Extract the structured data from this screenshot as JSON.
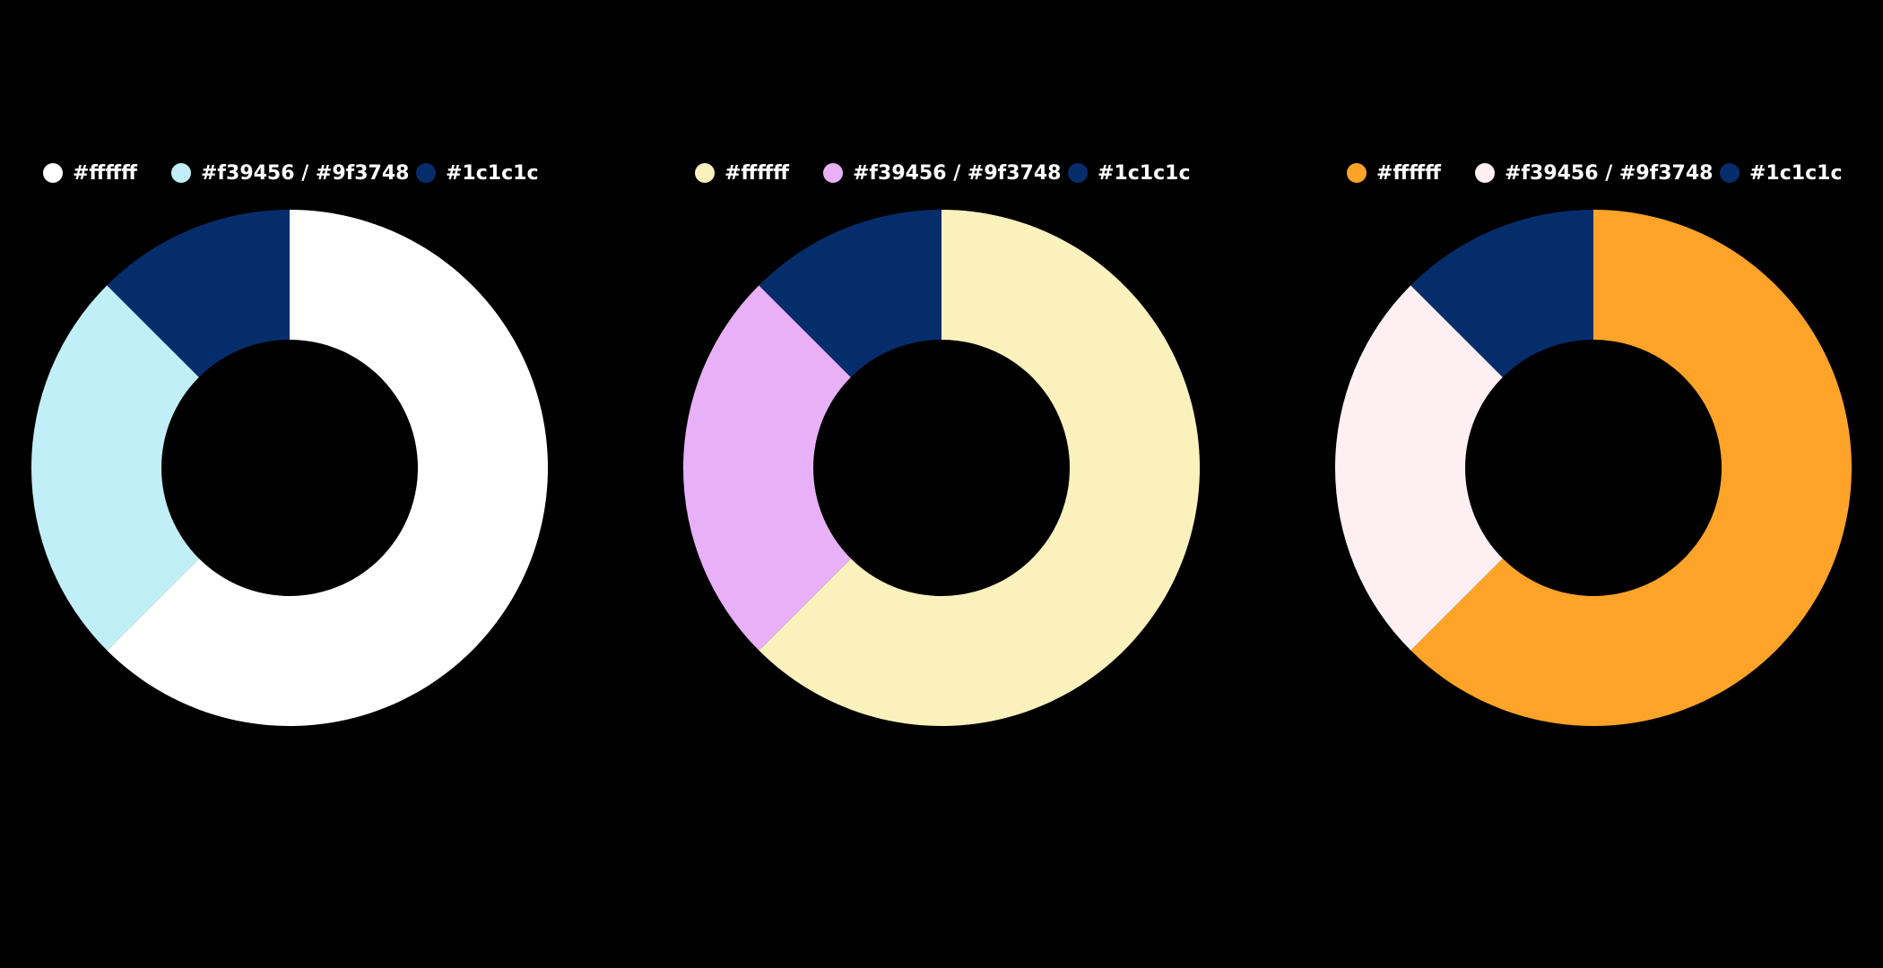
{
  "chart_data": [
    {
      "type": "donut",
      "categories": [
        "#ffffff",
        "#f39456 / #9f3748",
        "#1c1c1c"
      ],
      "values": [
        62.5,
        25,
        12.5
      ],
      "colors": [
        "#ffffff",
        "#c1eff7",
        "#062d6b"
      ]
    },
    {
      "type": "donut",
      "categories": [
        "#ffffff",
        "#f39456 / #9f3748",
        "#1c1c1c"
      ],
      "values": [
        62.5,
        25,
        12.5
      ],
      "colors": [
        "#fbf1bc",
        "#e8b0f7",
        "#062d6b"
      ]
    },
    {
      "type": "donut",
      "categories": [
        "#ffffff",
        "#f39456 / #9f3748",
        "#1c1c1c"
      ],
      "values": [
        62.5,
        25,
        12.5
      ],
      "colors": [
        "#ffa329",
        "#fdeff2",
        "#062d6b"
      ]
    }
  ]
}
